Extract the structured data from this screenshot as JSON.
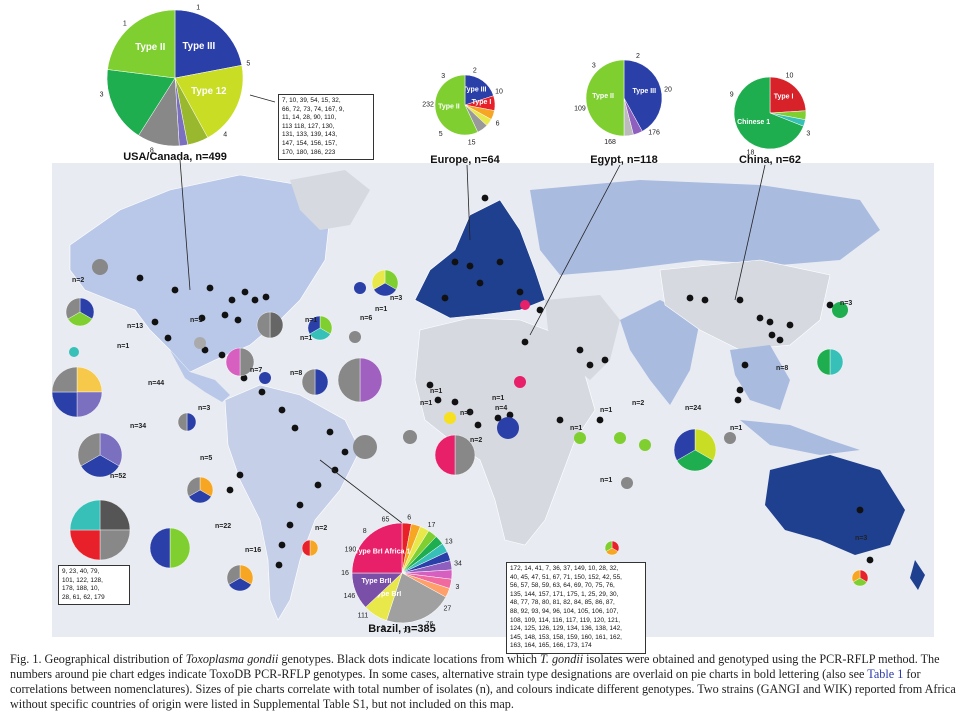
{
  "pies": [
    {
      "name": "pie-usa-canada",
      "label": "USA/Canada, n=499",
      "slices": [
        {
          "label": "Type III",
          "color": "#2b3fa8",
          "value": 22
        },
        {
          "label": "Type 12",
          "color": "#c8dd23",
          "value": 20
        },
        {
          "label": "",
          "color": "#9ab82e",
          "value": 5
        },
        {
          "label": "",
          "color": "#7b6fc0",
          "value": 2
        },
        {
          "label": "",
          "color": "#888888",
          "value": 10
        },
        {
          "label": "",
          "color": "#1fae4f",
          "value": 18
        },
        {
          "label": "Type II",
          "color": "#7fcf30",
          "value": 23
        }
      ],
      "edge_numbers": [
        "1",
        "5",
        "4",
        "8",
        "3",
        "1"
      ]
    },
    {
      "name": "pie-europe",
      "label": "Europe, n=64",
      "slices": [
        {
          "label": "Type III",
          "color": "#2b3fa8",
          "value": 20
        },
        {
          "label": "Type I",
          "color": "#e8202a",
          "value": 8
        },
        {
          "label": "",
          "color": "#f6a623",
          "value": 5
        },
        {
          "label": "",
          "color": "#e8e84a",
          "value": 4
        },
        {
          "label": "",
          "color": "#999999",
          "value": 6
        },
        {
          "label": "Type II",
          "color": "#7fcf30",
          "value": 57
        }
      ],
      "edge_numbers": [
        "2",
        "10",
        "6",
        "15",
        "5",
        "232",
        "3"
      ]
    },
    {
      "name": "pie-egypt",
      "label": "Egypt, n=118",
      "slices": [
        {
          "label": "Type III",
          "color": "#2b3fa8",
          "value": 42
        },
        {
          "label": "",
          "color": "#8f5fbf",
          "value": 4
        },
        {
          "label": "",
          "color": "#bbbbbb",
          "value": 4
        },
        {
          "label": "Type II",
          "color": "#7fcf30",
          "value": 50
        }
      ],
      "edge_numbers": [
        "2",
        "20",
        "176",
        "168",
        "109",
        "3"
      ]
    },
    {
      "name": "pie-china",
      "label": "China, n=62",
      "slices": [
        {
          "label": "Type I",
          "color": "#d8222a",
          "value": 24
        },
        {
          "label": "",
          "color": "#7fcf30",
          "value": 4
        },
        {
          "label": "",
          "color": "#36c0b8",
          "value": 3
        },
        {
          "label": "Chinese 1",
          "color": "#1fae4f",
          "value": 69
        }
      ],
      "edge_numbers": [
        "10",
        "3",
        "18",
        "9"
      ]
    },
    {
      "name": "pie-brazil",
      "label": "Brazil, n=385",
      "slices": [
        {
          "label": "",
          "color": "#e8202a",
          "value": 3
        },
        {
          "label": "",
          "color": "#f6a623",
          "value": 3
        },
        {
          "label": "",
          "color": "#e8e84a",
          "value": 3
        },
        {
          "label": "",
          "color": "#7fcf30",
          "value": 3
        },
        {
          "label": "",
          "color": "#1fae4f",
          "value": 3
        },
        {
          "label": "",
          "color": "#36c0b8",
          "value": 3
        },
        {
          "label": "",
          "color": "#2b3fa8",
          "value": 3
        },
        {
          "label": "",
          "color": "#8f5fbf",
          "value": 3
        },
        {
          "label": "",
          "color": "#d65fbf",
          "value": 3
        },
        {
          "label": "",
          "color": "#f06aa0",
          "value": 3
        },
        {
          "label": "",
          "color": "#ff9f6a",
          "value": 3
        },
        {
          "label": "",
          "color": "#a0a0a0",
          "value": 22
        },
        {
          "label": "Type BrI",
          "color": "#e8e84a",
          "value": 8
        },
        {
          "label": "Type BrII",
          "color": "#7a4fa8",
          "value": 12
        },
        {
          "label": "Type BrI Africa 1",
          "color": "#e8206a",
          "value": 25
        }
      ],
      "edge_numbers": [
        "6",
        "17",
        "13",
        "34",
        "3",
        "27",
        "76",
        "71",
        "2",
        "111",
        "146",
        "16",
        "190",
        "8",
        "65"
      ]
    }
  ],
  "callouts": {
    "usa": "7, 10, 39, 54, 15, 32,\n66, 72, 73, 74, 167, 9,\n11, 14, 28, 90, 110,\n113 118, 127, 130,\n131, 133, 139, 143,\n147, 154, 156, 157,\n170, 180, 186, 223",
    "southam": "9, 23, 40, 79,\n101, 122, 128,\n178, 188, 10,\n28, 61, 62, 179",
    "brazil": "172, 14, 41, 7, 36, 37, 149, 10, 28, 32,\n40, 45, 47, 51, 67, 71, 150, 152, 42, 55,\n56, 57, 58, 59, 63, 64, 69, 70, 75, 76,\n135, 144, 157, 171, 175, 1, 25, 29, 30,\n48, 77, 78, 80, 81, 82, 84, 85, 86, 87,\n88, 92, 93, 94, 96, 104, 105, 106, 107,\n108, 109, 114, 116, 117, 119, 120, 121,\n124, 125, 126, 129, 134, 136, 138, 142,\n145, 148, 153, 158, 159, 160, 161, 162,\n163, 164, 165, 166, 173, 174"
  },
  "n_labels": [
    "n=2",
    "n=13",
    "n=1",
    "n=8",
    "n=44",
    "n=34",
    "n=3",
    "n=52",
    "n=1",
    "n=1",
    "n=6",
    "n=1",
    "n=5",
    "n=22",
    "n=16",
    "n=2",
    "n=7",
    "n=1",
    "n=3",
    "n=1",
    "n=4",
    "n=1",
    "n=2",
    "n=4",
    "n=1",
    "n=1",
    "n=1",
    "n=2",
    "n=24",
    "n=1",
    "n=1",
    "n=3",
    "n=8",
    "n=3"
  ],
  "caption": {
    "fig": "Fig. 1.",
    "t1": "Geographical distribution of",
    "species": "Toxoplasma gondii",
    "t2": "genotypes. Black dots indicate locations from which",
    "species2": "T. gondii",
    "t3": "isolates were obtained and genotyped using the PCR-RFLP method. The numbers around pie chart edges indicate ToxoDB PCR-RFLP genotypes. In some cases, alternative strain type designations are overlaid on pie charts in bold lettering (also see",
    "link": "Table 1",
    "t4": "for correlations between nomenclatures). Sizes of pie charts correlate with total number of isolates (n), and colours indicate different genotypes. Two strains (GANGI and WIK) reported from Africa without specific countries of origin were listed in Supplemental Table S1, but not included on this map."
  },
  "colors": {
    "ocean": "#e8ecf2",
    "land_light": "#d6d9e0",
    "land_mid": "#aabbe0",
    "land_dark": "#1f3f8f",
    "north_america": "#b9c8e8",
    "dot": "#111111"
  }
}
